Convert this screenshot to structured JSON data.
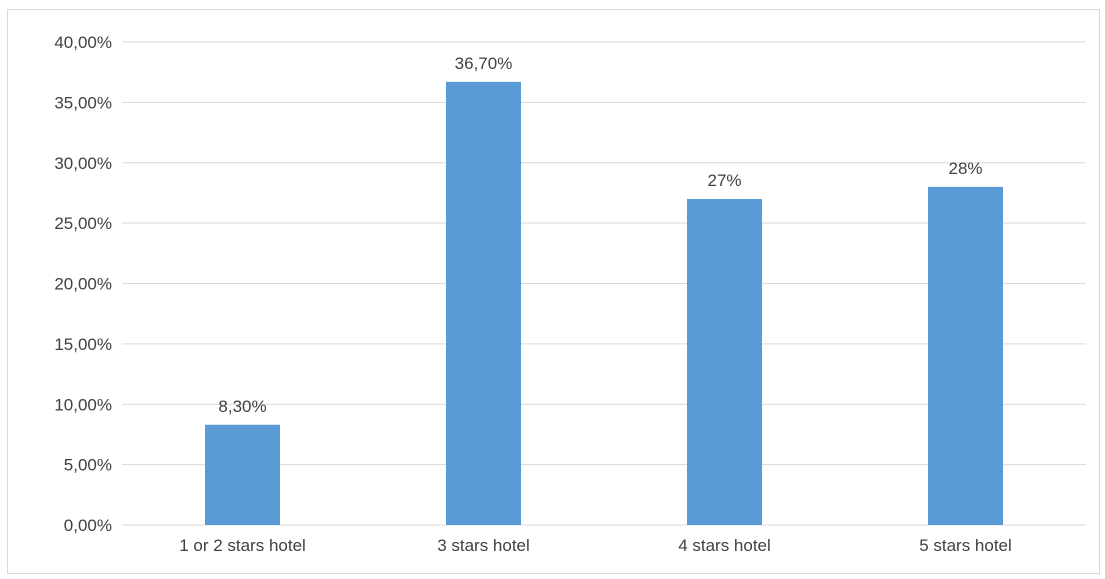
{
  "chart_data": {
    "type": "bar",
    "categories": [
      "1 or 2 stars hotel",
      "3 stars hotel",
      "4 stars hotel",
      "5 stars hotel"
    ],
    "values": [
      8.3,
      36.7,
      27,
      28
    ],
    "data_labels": [
      "8,30%",
      "36,70%",
      "27%",
      "28%"
    ],
    "y_ticks": [
      "0,00%",
      "5,00%",
      "10,00%",
      "15,00%",
      "20,00%",
      "25,00%",
      "30,00%",
      "35,00%",
      "40,00%"
    ],
    "title": "",
    "xlabel": "",
    "ylabel": "",
    "ylim": [
      0,
      40
    ],
    "grid": true,
    "legend": "none",
    "colors": {
      "bar": "#5b9bd5",
      "grid": "#d9d9d9",
      "text": "#404040"
    }
  }
}
